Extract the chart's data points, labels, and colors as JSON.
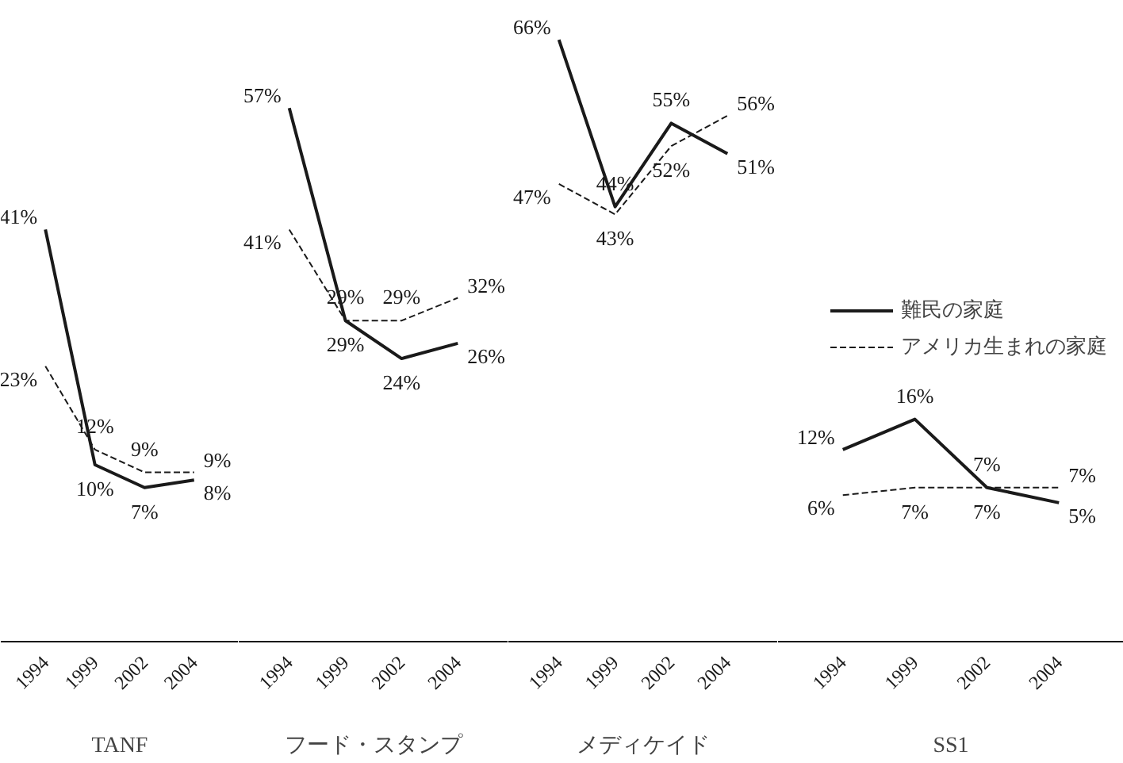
{
  "chart_data": [
    {
      "type": "line",
      "xlabel": "TANF",
      "categories": [
        "1994",
        "1999",
        "2002",
        "2004"
      ],
      "tick_labels": "x",
      "grid": false,
      "legend": false,
      "series": [
        {
          "color": "#1a1a1a",
          "line_style": "solid",
          "values": [
            41,
            10,
            7,
            8
          ],
          "value_labels": [
            "41%",
            "10%",
            "7%",
            "8%"
          ]
        },
        {
          "color": "#1a1a1a",
          "line_style": "dashed",
          "values": [
            23,
            12,
            9,
            9
          ],
          "value_labels": [
            "23%",
            "12%",
            "9%",
            "9%"
          ]
        }
      ]
    },
    {
      "type": "line",
      "xlabel": "フード・スタンプ",
      "categories": [
        "1994",
        "1999",
        "2002",
        "2004"
      ],
      "tick_labels": "x",
      "grid": false,
      "legend": false,
      "series": [
        {
          "color": "#1a1a1a",
          "line_style": "solid",
          "values": [
            57,
            29,
            24,
            26
          ],
          "value_labels": [
            "57%",
            "29%",
            "24%",
            "26%"
          ]
        },
        {
          "color": "#1a1a1a",
          "line_style": "dashed",
          "values": [
            41,
            29,
            29,
            32
          ],
          "value_labels": [
            "41%",
            "29%",
            "29%",
            "32%"
          ]
        }
      ]
    },
    {
      "type": "line",
      "xlabel": "メディケイド",
      "categories": [
        "1994",
        "1999",
        "2002",
        "2004"
      ],
      "tick_labels": "x",
      "grid": false,
      "legend": false,
      "series": [
        {
          "color": "#1a1a1a",
          "line_style": "solid",
          "values": [
            66,
            44,
            55,
            51
          ],
          "value_labels": [
            "66%",
            "44%",
            "55%",
            "51%"
          ]
        },
        {
          "color": "#1a1a1a",
          "line_style": "dashed",
          "values": [
            47,
            43,
            52,
            56
          ],
          "value_labels": [
            "47%",
            "43%",
            "52%",
            "56%"
          ]
        }
      ]
    },
    {
      "type": "line",
      "xlabel": "SS1",
      "categories": [
        "1994",
        "1999",
        "2002",
        "2004"
      ],
      "tick_labels": "x",
      "grid": false,
      "legend": "right",
      "series": [
        {
          "name": "難民の家庭",
          "color": "#1a1a1a",
          "line_style": "solid",
          "values": [
            12,
            16,
            7,
            5
          ],
          "value_labels": [
            "12%",
            "16%",
            "7%",
            "5%"
          ]
        },
        {
          "name": "アメリカ生まれの家庭",
          "color": "#1a1a1a",
          "line_style": "dashed",
          "values": [
            6,
            7,
            7,
            7
          ],
          "value_labels": [
            "6%",
            "7%",
            "7%",
            "7%"
          ]
        }
      ]
    }
  ]
}
